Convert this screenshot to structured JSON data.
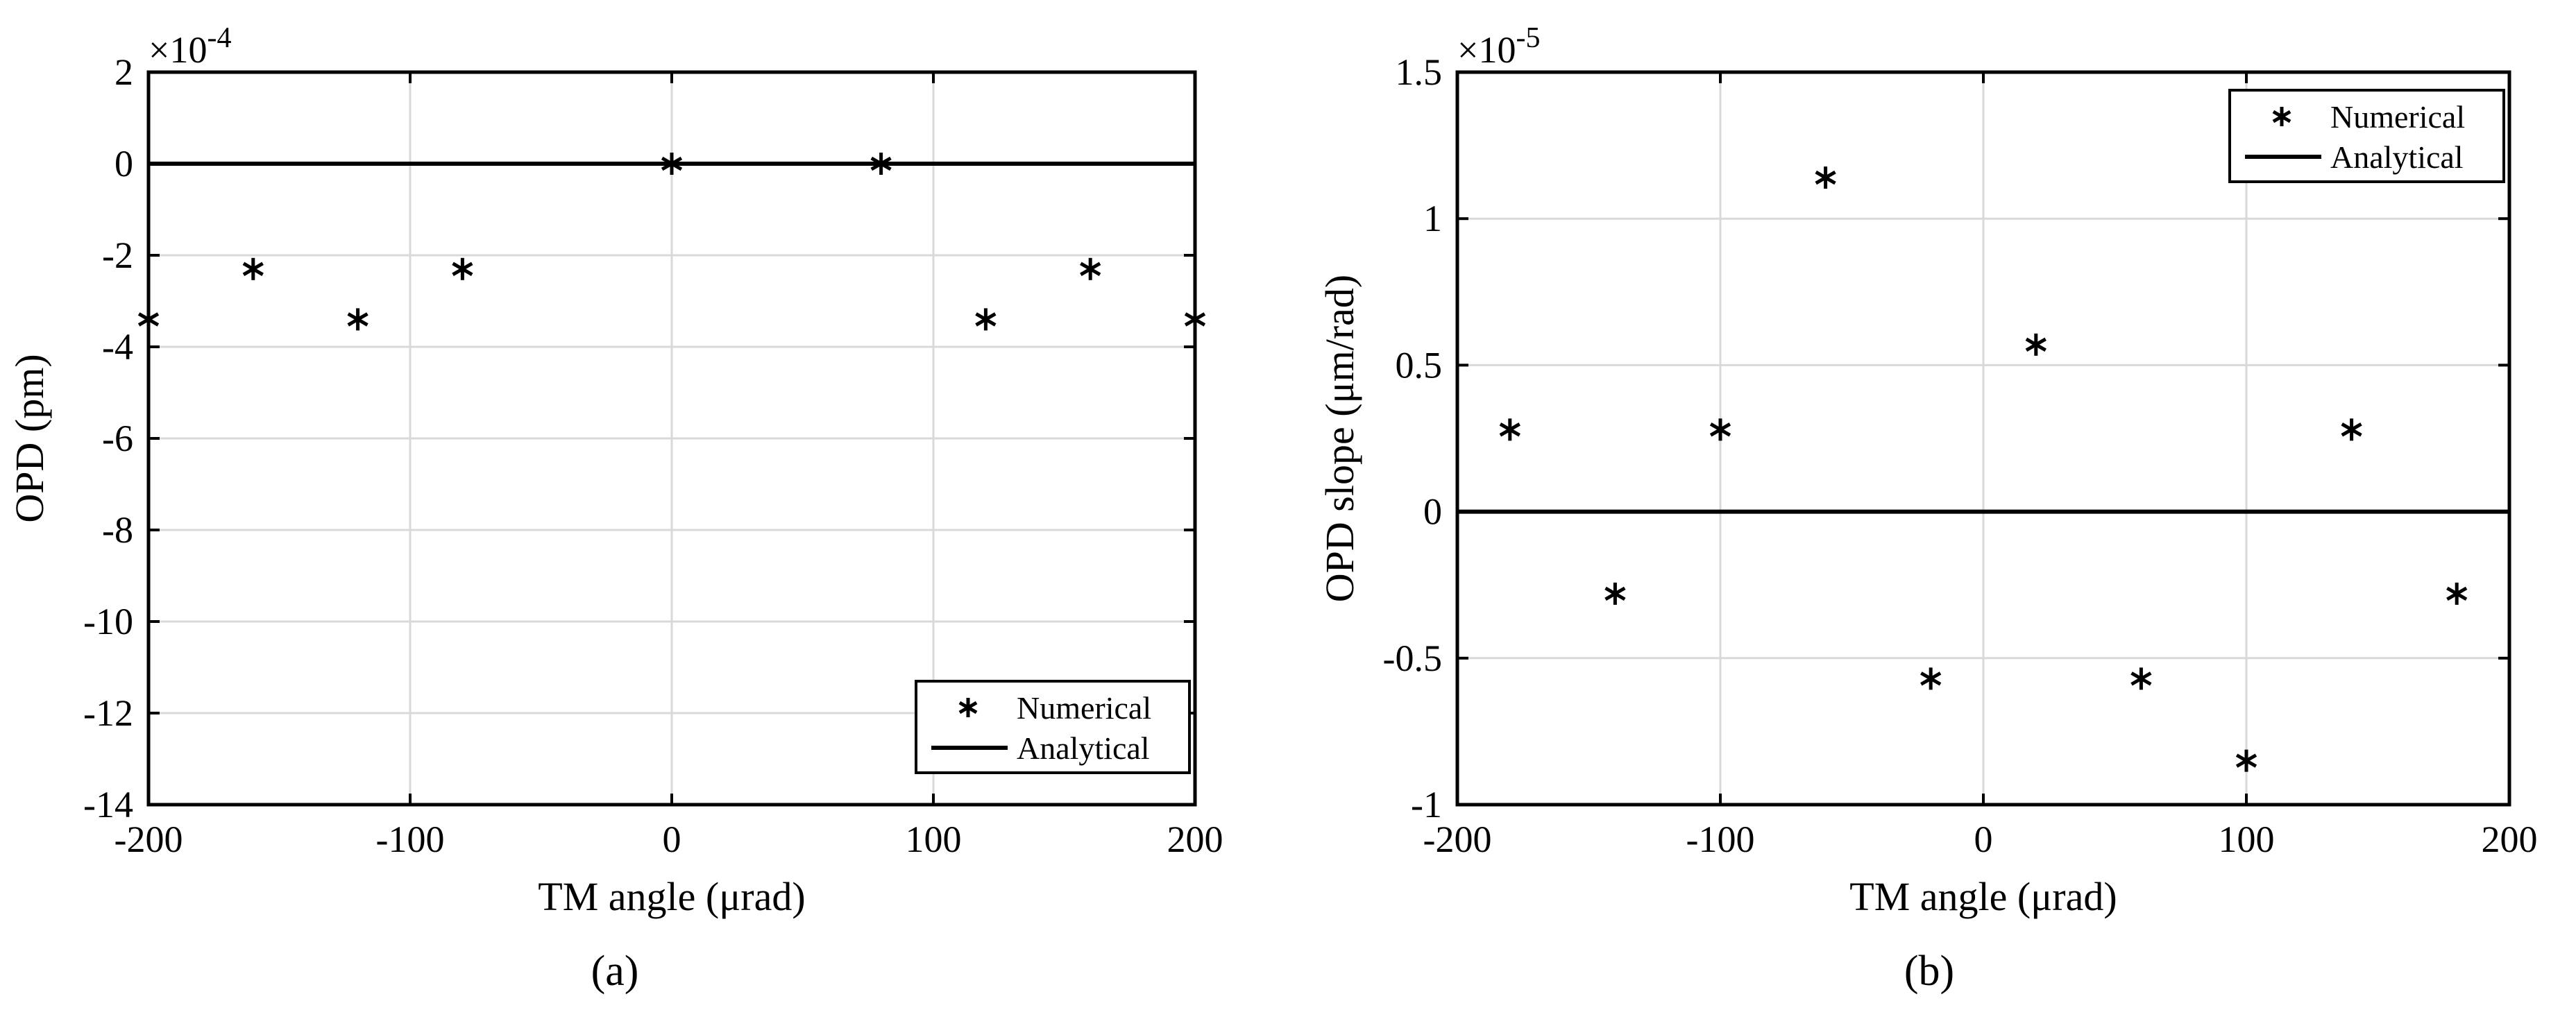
{
  "chart_data": [
    {
      "type": "scatter",
      "panel_label": "(a)",
      "xlabel": "TM angle (μrad)",
      "ylabel": "OPD (pm)",
      "xlim": [
        -200,
        200
      ],
      "ylim": [
        -14,
        2
      ],
      "y_exponent_label": "×10",
      "y_exponent_power": "-4",
      "xticks": [
        -200,
        -100,
        0,
        100,
        200
      ],
      "yticks": [
        2,
        0,
        -2,
        -4,
        -6,
        -8,
        -10,
        -12,
        -14
      ],
      "grid": true,
      "legend_position": "bottom-right",
      "series": [
        {
          "name": "Numerical",
          "marker": "*",
          "points": [
            {
              "x": -200,
              "y": -3.4
            },
            {
              "x": -160,
              "y": -2.3
            },
            {
              "x": -120,
              "y": -3.4
            },
            {
              "x": -80,
              "y": -2.3
            },
            {
              "x": 0,
              "y": 0
            },
            {
              "x": 80,
              "y": 0
            },
            {
              "x": 120,
              "y": -3.4
            },
            {
              "x": 160,
              "y": -2.3
            },
            {
              "x": 200,
              "y": -3.4
            }
          ]
        },
        {
          "name": "Analytical",
          "style": "line",
          "points": [
            {
              "x": -200,
              "y": 0
            },
            {
              "x": 200,
              "y": 0
            }
          ]
        }
      ]
    },
    {
      "type": "scatter",
      "panel_label": "(b)",
      "xlabel": "TM angle (μrad)",
      "ylabel": "OPD slope (μm/rad)",
      "xlim": [
        -200,
        200
      ],
      "ylim": [
        -1,
        1.5
      ],
      "y_exponent_label": "×10",
      "y_exponent_power": "-5",
      "xticks": [
        -200,
        -100,
        0,
        100,
        200
      ],
      "yticks": [
        1.5,
        1,
        0.5,
        0,
        -0.5,
        -1
      ],
      "grid": true,
      "legend_position": "top-right",
      "series": [
        {
          "name": "Numerical",
          "marker": "*",
          "points": [
            {
              "x": -180,
              "y": 0.28
            },
            {
              "x": -140,
              "y": -0.28
            },
            {
              "x": -100,
              "y": 0.28
            },
            {
              "x": -60,
              "y": 1.14
            },
            {
              "x": -20,
              "y": -0.57
            },
            {
              "x": 20,
              "y": 0.57
            },
            {
              "x": 60,
              "y": -0.57
            },
            {
              "x": 100,
              "y": -0.85
            },
            {
              "x": 140,
              "y": 0.28
            },
            {
              "x": 180,
              "y": -0.28
            }
          ]
        },
        {
          "name": "Analytical",
          "style": "line",
          "points": [
            {
              "x": -200,
              "y": 0
            },
            {
              "x": 200,
              "y": 0
            }
          ]
        }
      ]
    }
  ]
}
